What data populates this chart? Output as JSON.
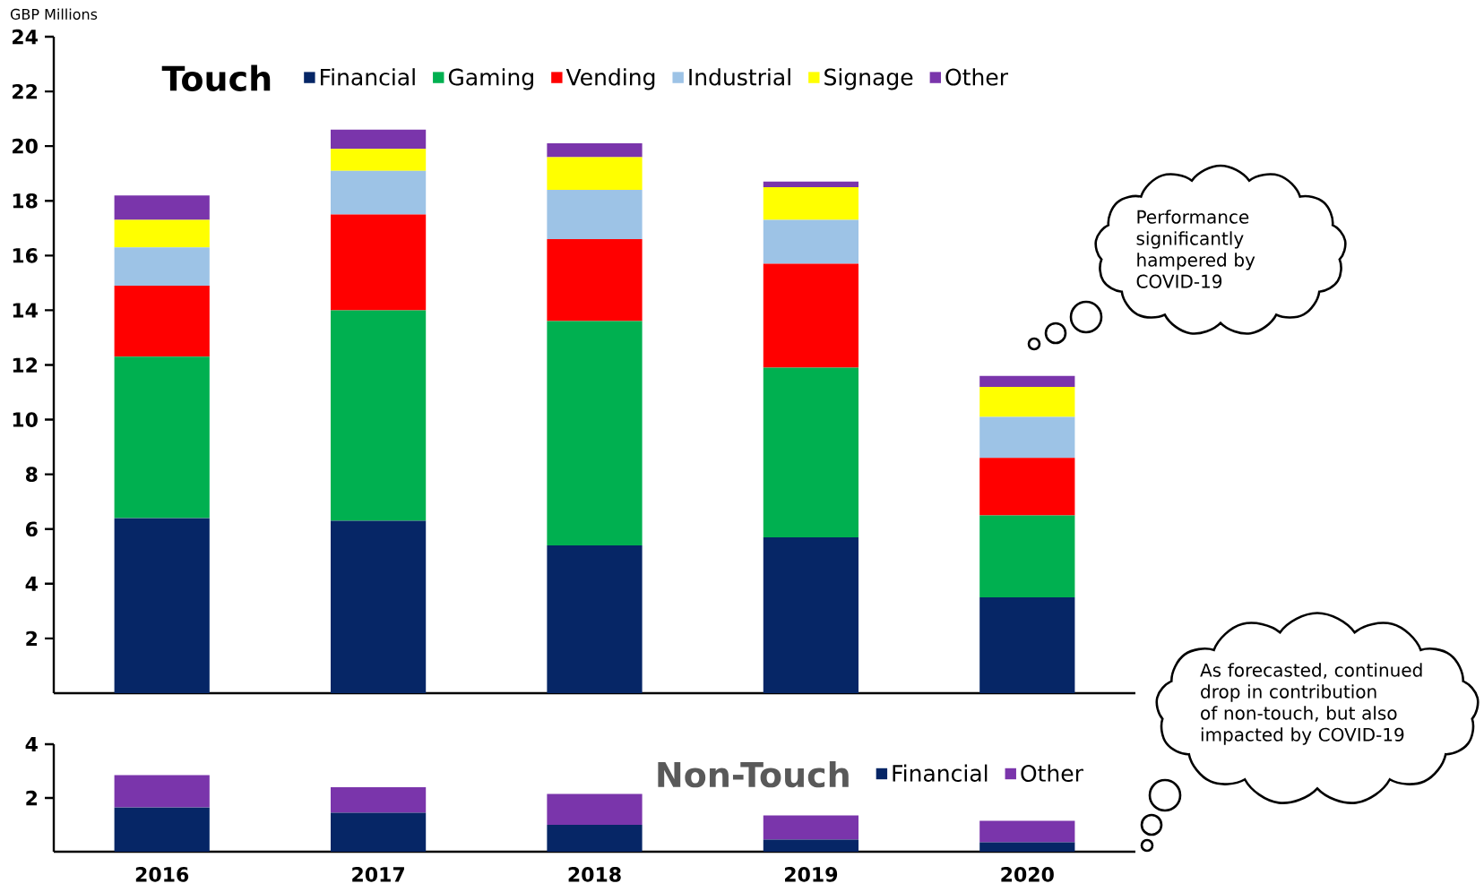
{
  "chart_data": [
    {
      "type": "bar",
      "stacked": true,
      "title": "Touch",
      "ylabel": "GBP Millions",
      "categories": [
        "2016",
        "2017",
        "2018",
        "2019",
        "2020"
      ],
      "tick_labels": "y",
      "ylim": [
        0,
        24
      ],
      "yticks": [
        2,
        4,
        6,
        8,
        10,
        12,
        14,
        16,
        18,
        20,
        22,
        24
      ],
      "legend": "top",
      "series": [
        {
          "name": "Financial",
          "color": "#062666",
          "values": [
            6.4,
            6.3,
            5.4,
            5.7,
            3.5
          ]
        },
        {
          "name": "Gaming",
          "color": "#00b050",
          "values": [
            5.9,
            7.7,
            8.2,
            6.2,
            3.0
          ]
        },
        {
          "name": "Vending",
          "color": "#ff0000",
          "values": [
            2.6,
            3.5,
            3.0,
            3.8,
            2.1
          ]
        },
        {
          "name": "Industrial",
          "color": "#9dc3e6",
          "values": [
            1.4,
            1.6,
            1.8,
            1.6,
            1.5
          ]
        },
        {
          "name": "Signage",
          "color": "#ffff00",
          "values": [
            1.0,
            0.8,
            1.2,
            1.2,
            1.1
          ]
        },
        {
          "name": "Other",
          "color": "#7a35ab",
          "values": [
            0.9,
            0.7,
            0.5,
            0.2,
            0.4
          ]
        }
      ],
      "annotations": [
        "Performance significantly hampered by COVID-19"
      ]
    },
    {
      "type": "bar",
      "stacked": true,
      "title": "Non-Touch",
      "categories": [
        "2016",
        "2017",
        "2018",
        "2019",
        "2020"
      ],
      "ylim": [
        0,
        4
      ],
      "yticks": [
        2,
        4
      ],
      "legend": "top right",
      "series": [
        {
          "name": "Financial",
          "color": "#062666",
          "values": [
            1.65,
            1.45,
            1.0,
            0.45,
            0.35
          ]
        },
        {
          "name": "Other",
          "color": "#7a35ab",
          "values": [
            1.2,
            0.95,
            1.15,
            0.9,
            0.8
          ]
        }
      ],
      "annotations": [
        "As forecasted, continued drop in contribution of non-touch, but also impacted by COVID-19"
      ]
    }
  ]
}
